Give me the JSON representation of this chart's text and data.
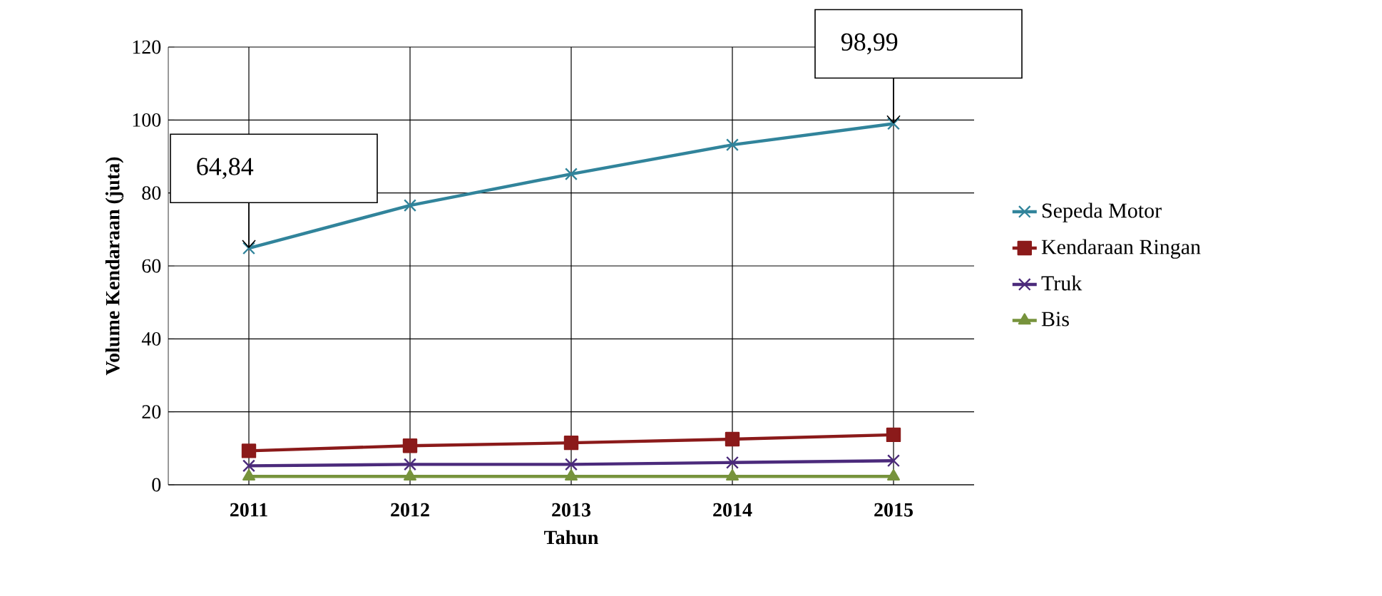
{
  "chart_data": {
    "type": "line",
    "xlabel": "Tahun",
    "ylabel": "Volume Kendaraan (juta)",
    "categories": [
      "2011",
      "2012",
      "2013",
      "2014",
      "2015"
    ],
    "series": [
      {
        "name": "Sepeda Motor",
        "color": "#31849b",
        "marker": "cross",
        "values": [
          64.84,
          76.6,
          85.2,
          93.2,
          98.99
        ]
      },
      {
        "name": "Kendaraan Ringan",
        "color": "#8b1a1a",
        "marker": "square",
        "values": [
          9.3,
          10.7,
          11.5,
          12.5,
          13.7
        ]
      },
      {
        "name": "Truk",
        "color": "#4b2a7b",
        "marker": "cross",
        "values": [
          5.2,
          5.6,
          5.6,
          6.1,
          6.6
        ]
      },
      {
        "name": "Bis",
        "color": "#77933c",
        "marker": "triangle",
        "values": [
          2.3,
          2.3,
          2.3,
          2.3,
          2.3
        ]
      }
    ],
    "annotations": [
      {
        "text": "64,84",
        "x": "2011",
        "y": 64.84
      },
      {
        "text": "98,99",
        "x": "2015",
        "y": 98.99
      }
    ],
    "ylim": [
      0,
      120
    ],
    "yticks": [
      0,
      20,
      40,
      60,
      80,
      100,
      120
    ],
    "grid": true,
    "legend": "right"
  }
}
